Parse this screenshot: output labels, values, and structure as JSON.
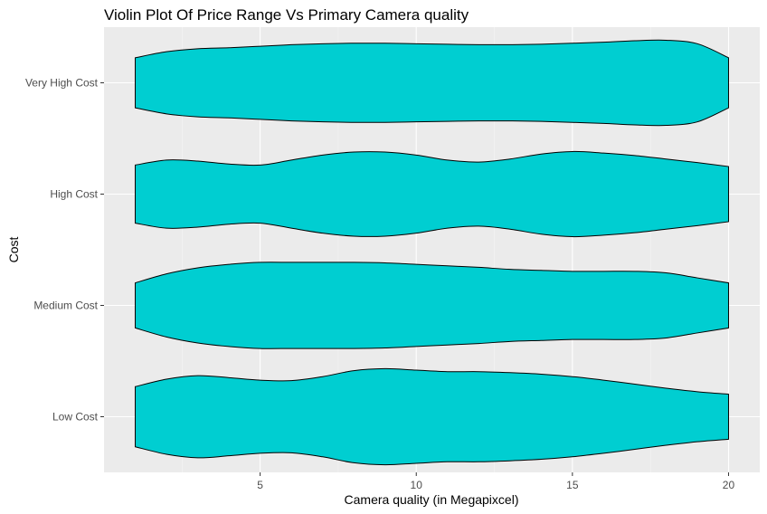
{
  "colors": {
    "panel_background": "#ebebeb",
    "grid_major": "#ffffff",
    "grid_minor": "#f5f5f5",
    "violin_fill": "#00ced1",
    "violin_outline": "#000000",
    "tick_text": "#4d4d4d"
  },
  "chart_data": {
    "type": "violin",
    "title": "Violin Plot Of Price Range Vs Primary Camera quality",
    "xlabel": "Camera quality (in Megapixcel)",
    "ylabel": "Cost",
    "xlim": [
      0,
      21
    ],
    "x_ticks": [
      5,
      10,
      15,
      20
    ],
    "categories": [
      "Low Cost",
      "Medium Cost",
      "High Cost",
      "Very High Cost"
    ],
    "grid": true,
    "legend": "none",
    "series": [
      {
        "name": "Low Cost",
        "x": [
          1,
          2,
          3,
          4,
          5,
          6,
          7,
          8,
          9,
          10,
          11,
          12,
          13,
          14,
          15,
          16,
          17,
          18,
          19,
          20
        ],
        "width": [
          0.6,
          0.75,
          0.82,
          0.78,
          0.73,
          0.72,
          0.8,
          0.92,
          0.96,
          0.93,
          0.9,
          0.9,
          0.88,
          0.85,
          0.8,
          0.73,
          0.65,
          0.57,
          0.5,
          0.45
        ]
      },
      {
        "name": "Medium Cost",
        "x": [
          1,
          2,
          3,
          4,
          5,
          6,
          7,
          8,
          9,
          10,
          11,
          12,
          13,
          14,
          15,
          16,
          17,
          18,
          19,
          20
        ],
        "width": [
          0.45,
          0.63,
          0.75,
          0.82,
          0.86,
          0.86,
          0.86,
          0.86,
          0.85,
          0.82,
          0.79,
          0.76,
          0.72,
          0.7,
          0.68,
          0.68,
          0.68,
          0.65,
          0.55,
          0.45
        ]
      },
      {
        "name": "High Cost",
        "x": [
          1,
          2,
          3,
          4,
          5,
          6,
          7,
          8,
          9,
          10,
          11,
          12,
          13,
          14,
          15,
          16,
          17,
          18,
          19,
          20
        ],
        "width": [
          0.58,
          0.68,
          0.66,
          0.6,
          0.58,
          0.68,
          0.78,
          0.84,
          0.84,
          0.78,
          0.68,
          0.64,
          0.7,
          0.8,
          0.85,
          0.82,
          0.77,
          0.7,
          0.63,
          0.55
        ]
      },
      {
        "name": "Very High Cost",
        "x": [
          1,
          2,
          3,
          4,
          5,
          6,
          7,
          8,
          9,
          10,
          11,
          12,
          13,
          14,
          15,
          16,
          17,
          18,
          19,
          20
        ],
        "width": [
          0.5,
          0.62,
          0.68,
          0.7,
          0.73,
          0.76,
          0.78,
          0.79,
          0.79,
          0.78,
          0.77,
          0.76,
          0.76,
          0.77,
          0.79,
          0.81,
          0.84,
          0.85,
          0.78,
          0.5
        ]
      }
    ]
  }
}
